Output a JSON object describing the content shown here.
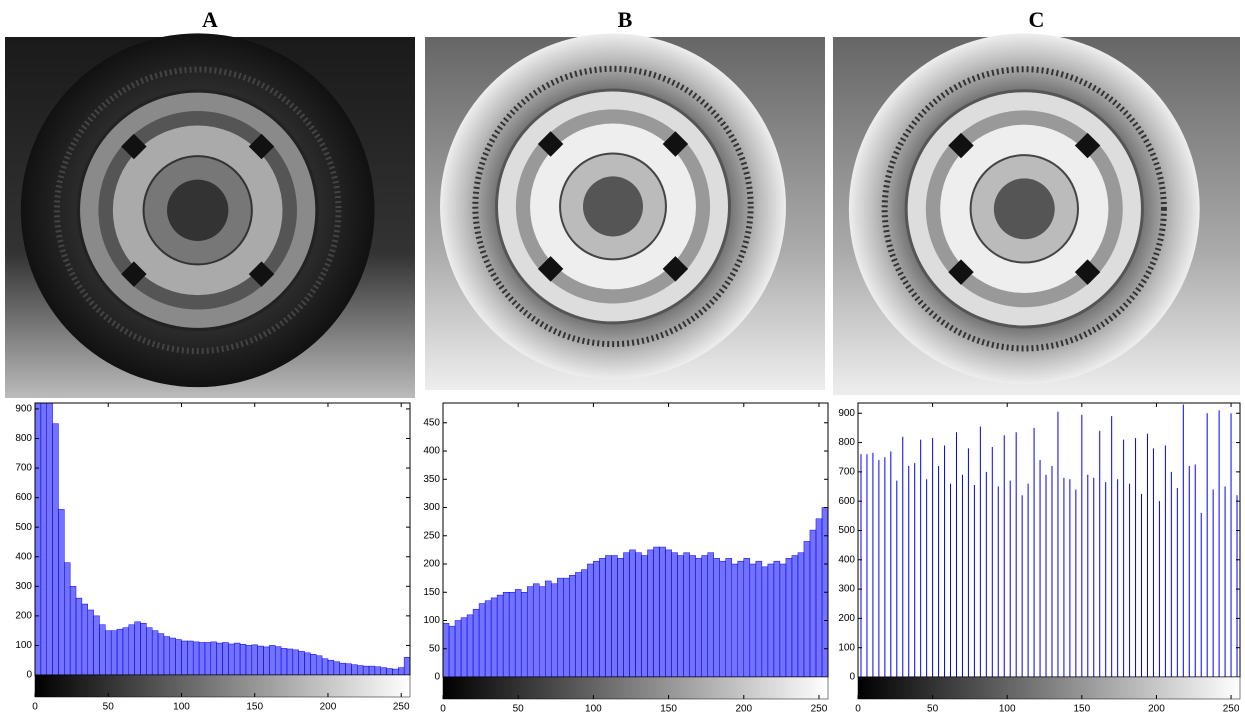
{
  "chart_data": [
    {
      "type": "histogram",
      "title": "A",
      "color": "#0000ff",
      "bins": [
        0,
        4,
        8,
        12,
        16,
        20,
        24,
        28,
        32,
        36,
        40,
        44,
        48,
        52,
        56,
        60,
        64,
        68,
        72,
        76,
        80,
        84,
        88,
        92,
        96,
        100,
        104,
        108,
        112,
        116,
        120,
        124,
        128,
        132,
        136,
        140,
        144,
        148,
        152,
        156,
        160,
        164,
        168,
        172,
        176,
        180,
        184,
        188,
        192,
        196,
        200,
        204,
        208,
        212,
        216,
        220,
        224,
        228,
        232,
        236,
        240,
        244,
        248,
        252,
        256
      ],
      "values": [
        920,
        920,
        920,
        850,
        560,
        380,
        300,
        260,
        240,
        220,
        200,
        170,
        150,
        150,
        155,
        160,
        170,
        180,
        175,
        160,
        150,
        140,
        130,
        125,
        120,
        115,
        115,
        112,
        110,
        110,
        112,
        108,
        110,
        105,
        108,
        104,
        100,
        102,
        98,
        95,
        100,
        96,
        90,
        88,
        85,
        80,
        75,
        70,
        65,
        55,
        50,
        45,
        40,
        38,
        35,
        32,
        30,
        30,
        28,
        25,
        22,
        20,
        25,
        60
      ],
      "xlim": [
        0,
        256
      ],
      "xticks": [
        0,
        50,
        100,
        150,
        200,
        250
      ],
      "ylim": [
        0,
        920
      ],
      "yticks": [
        0,
        100,
        200,
        300,
        400,
        500,
        600,
        700,
        800,
        900
      ]
    },
    {
      "type": "histogram",
      "title": "B",
      "color": "#0000ff",
      "bins": [
        0,
        4,
        8,
        12,
        16,
        20,
        24,
        28,
        32,
        36,
        40,
        44,
        48,
        52,
        56,
        60,
        64,
        68,
        72,
        76,
        80,
        84,
        88,
        92,
        96,
        100,
        104,
        108,
        112,
        116,
        120,
        124,
        128,
        132,
        136,
        140,
        144,
        148,
        152,
        156,
        160,
        164,
        168,
        172,
        176,
        180,
        184,
        188,
        192,
        196,
        200,
        204,
        208,
        212,
        216,
        220,
        224,
        228,
        232,
        236,
        240,
        244,
        248,
        252,
        256
      ],
      "values": [
        95,
        90,
        100,
        105,
        110,
        120,
        130,
        135,
        140,
        145,
        150,
        150,
        155,
        150,
        160,
        165,
        160,
        170,
        165,
        175,
        175,
        180,
        185,
        190,
        200,
        205,
        210,
        215,
        215,
        210,
        220,
        225,
        220,
        215,
        225,
        230,
        230,
        225,
        220,
        215,
        220,
        215,
        210,
        215,
        220,
        210,
        205,
        210,
        200,
        205,
        210,
        200,
        205,
        195,
        200,
        205,
        200,
        210,
        215,
        220,
        240,
        260,
        280,
        300
      ],
      "xlim": [
        0,
        256
      ],
      "xticks": [
        0,
        50,
        100,
        150,
        200,
        250
      ],
      "ylim": [
        0,
        485
      ],
      "yticks": [
        0,
        50,
        100,
        150,
        200,
        250,
        300,
        350,
        400,
        450
      ]
    },
    {
      "type": "stem",
      "title": "C",
      "color": "#0000ff",
      "x": [
        2,
        6,
        10,
        14,
        18,
        22,
        26,
        30,
        34,
        38,
        42,
        46,
        50,
        54,
        58,
        62,
        66,
        70,
        74,
        78,
        82,
        86,
        90,
        94,
        98,
        102,
        106,
        110,
        114,
        118,
        122,
        126,
        130,
        134,
        138,
        142,
        146,
        150,
        154,
        158,
        162,
        166,
        170,
        174,
        178,
        182,
        186,
        190,
        194,
        198,
        202,
        206,
        210,
        214,
        218,
        222,
        226,
        230,
        234,
        238,
        242,
        246,
        250,
        254
      ],
      "values": [
        760,
        760,
        765,
        740,
        750,
        770,
        670,
        820,
        720,
        730,
        810,
        675,
        815,
        720,
        790,
        660,
        835,
        690,
        780,
        655,
        855,
        700,
        785,
        650,
        825,
        670,
        835,
        620,
        660,
        850,
        740,
        690,
        720,
        905,
        680,
        675,
        640,
        895,
        690,
        680,
        840,
        665,
        890,
        675,
        810,
        660,
        815,
        625,
        830,
        780,
        600,
        790,
        700,
        645,
        930,
        720,
        725,
        560,
        900,
        640,
        910,
        650,
        900,
        620
      ],
      "xlim": [
        0,
        256
      ],
      "xticks": [
        0,
        50,
        100,
        150,
        200,
        250
      ],
      "ylim": [
        0,
        935
      ],
      "yticks": [
        0,
        100,
        200,
        300,
        400,
        500,
        600,
        700,
        800,
        900
      ]
    }
  ]
}
